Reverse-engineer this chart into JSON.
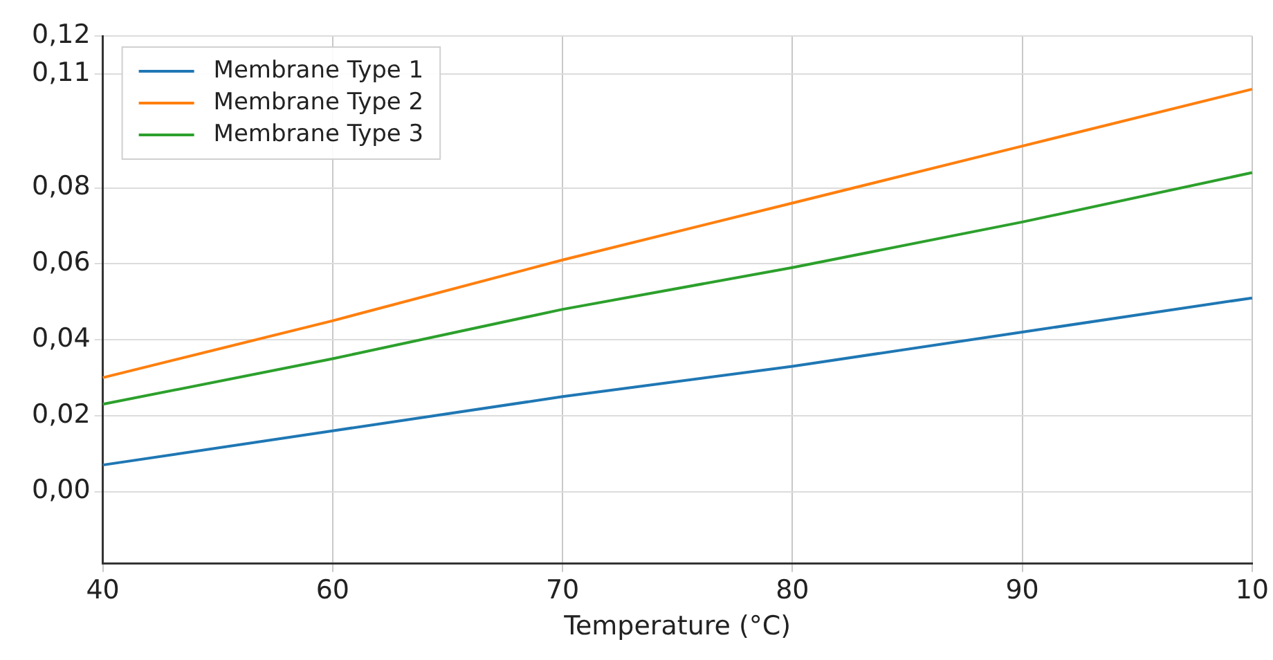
{
  "chart_data": {
    "type": "line",
    "xlabel": "Temperature (°C)",
    "categories": [
      "40",
      "60",
      "70",
      "80",
      "90",
      "10"
    ],
    "series": [
      {
        "name": "Membrane Type 1",
        "color": "#1f77b4",
        "values": [
          0.007,
          0.016,
          0.025,
          0.033,
          0.042,
          0.051
        ]
      },
      {
        "name": "Membrane Type 2",
        "color": "#ff7f0e",
        "values": [
          0.03,
          0.045,
          0.061,
          0.076,
          0.091,
          0.106
        ]
      },
      {
        "name": "Membrane Type 3",
        "color": "#2ca02c",
        "values": [
          0.023,
          0.035,
          0.048,
          0.059,
          0.071,
          0.084
        ]
      }
    ],
    "ylim": [
      -0.019,
      0.12
    ],
    "yticks": [
      {
        "value": 0,
        "label": "0,00"
      },
      {
        "value": 0.02,
        "label": "0,02"
      },
      {
        "value": 0.04,
        "label": "0,04"
      },
      {
        "value": 0.06,
        "label": "0,06"
      },
      {
        "value": 0.08,
        "label": "0,08"
      },
      {
        "value": 0.11,
        "label": "0,11"
      },
      {
        "value": 0.12,
        "label": "0,12"
      }
    ],
    "grid": true,
    "legend": "top left",
    "marker": "none",
    "line_style": "solid"
  }
}
